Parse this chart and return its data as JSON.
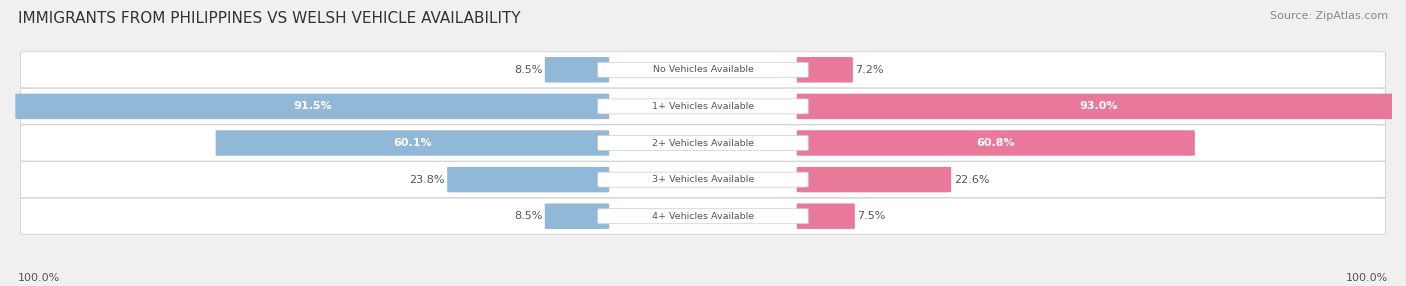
{
  "title": "IMMIGRANTS FROM PHILIPPINES VS WELSH VEHICLE AVAILABILITY",
  "source": "Source: ZipAtlas.com",
  "categories": [
    "No Vehicles Available",
    "1+ Vehicles Available",
    "2+ Vehicles Available",
    "3+ Vehicles Available",
    "4+ Vehicles Available"
  ],
  "philippines_values": [
    8.5,
    91.5,
    60.1,
    23.8,
    8.5
  ],
  "welsh_values": [
    7.2,
    93.0,
    60.8,
    22.6,
    7.5
  ],
  "philippines_color": "#92b8d8",
  "welsh_color": "#e8799a",
  "philippines_label": "Immigrants from Philippines",
  "welsh_label": "Welsh",
  "max_val": 100.0,
  "background_color": "#f0f0f0",
  "title_fontsize": 11,
  "source_fontsize": 8,
  "bottom_label": "100.0%"
}
